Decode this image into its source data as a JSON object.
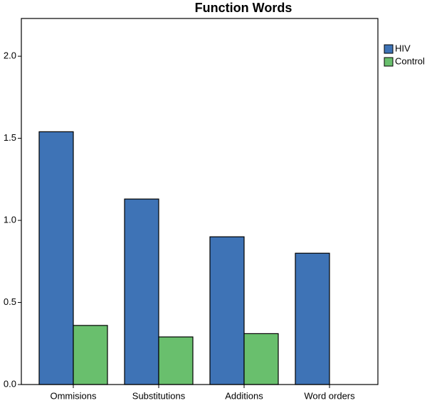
{
  "chart_data": {
    "type": "bar",
    "title": "Function Words",
    "categories": [
      "Ommisions",
      "Substitutions",
      "Additions",
      "Word orders"
    ],
    "series": [
      {
        "name": "HIV",
        "color": "#3e73b6",
        "values": [
          1.54,
          1.13,
          0.9,
          0.8
        ]
      },
      {
        "name": "Control",
        "color": "#69bf6d",
        "values": [
          0.36,
          0.29,
          0.31,
          0
        ]
      }
    ],
    "ylim": [
      0,
      2.23
    ],
    "yticks": [
      {
        "value": 0,
        "label": "0.0"
      },
      {
        "value": 0.5,
        "label": "0.5"
      },
      {
        "value": 1,
        "label": "1.0"
      },
      {
        "value": 1.5,
        "label": "1.5"
      },
      {
        "value": 2,
        "label": "2.0"
      }
    ],
    "legend": "top-right"
  }
}
